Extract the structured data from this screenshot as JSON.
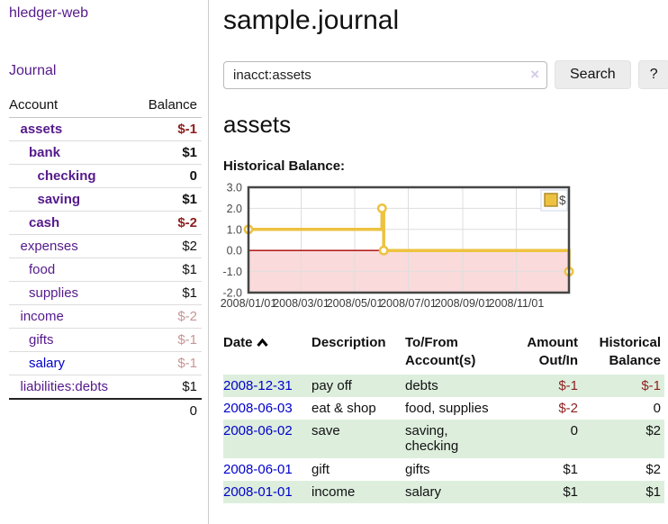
{
  "brand": "hledger-web",
  "nav": {
    "journal": "Journal"
  },
  "header": {
    "title": "sample.journal"
  },
  "search": {
    "value": "inacct:assets",
    "clear_icon": "×",
    "button_label": "Search",
    "help_label": "?"
  },
  "main": {
    "account_heading": "assets",
    "chart_label": "Historical Balance:"
  },
  "sidebar": {
    "header": {
      "account": "Account",
      "balance": "Balance"
    },
    "accounts": [
      {
        "name": "assets",
        "balance": "$-1",
        "indent": 1,
        "bold": true,
        "neg": true
      },
      {
        "name": "bank",
        "balance": "$1",
        "indent": 2,
        "bold": true
      },
      {
        "name": "checking",
        "balance": "0",
        "indent": 3,
        "bold": true
      },
      {
        "name": "saving",
        "balance": "$1",
        "indent": 3,
        "bold": true
      },
      {
        "name": "cash",
        "balance": "$-2",
        "indent": 2,
        "bold": true,
        "neg": true
      },
      {
        "name": "expenses",
        "balance": "$2",
        "indent": 1
      },
      {
        "name": "food",
        "balance": "$1",
        "indent": 2
      },
      {
        "name": "supplies",
        "balance": "$1",
        "indent": 2
      },
      {
        "name": "income",
        "balance": "$-2",
        "indent": 1,
        "dim_neg": true
      },
      {
        "name": "gifts",
        "balance": "$-1",
        "indent": 2,
        "dim_neg": true
      },
      {
        "name": "salary",
        "balance": "$-1",
        "indent": 2,
        "dim_neg": true,
        "blue": true
      },
      {
        "name": "liabilities:debts",
        "balance": "$1",
        "indent": 1
      }
    ],
    "total": "0"
  },
  "chart_data": {
    "type": "line",
    "title": "Historical Balance:",
    "step": true,
    "series": [
      {
        "name": "$",
        "color": "#edc240",
        "points": [
          [
            "2008-01-01",
            1
          ],
          [
            "2008-06-01",
            2
          ],
          [
            "2008-06-03",
            0
          ],
          [
            "2008-12-31",
            -1
          ]
        ]
      }
    ],
    "x_range": [
      "2008-01-01",
      "2008-12-31"
    ],
    "ylim": [
      -2,
      3
    ],
    "y_ticks": [
      3,
      2,
      1,
      0,
      -1,
      -2
    ],
    "y_tick_labels": [
      "3.0",
      "2.0",
      "1.0",
      "0.0",
      "-1.0",
      "-2.0"
    ],
    "x_ticks": [
      "2008-01-01",
      "2008-03-01",
      "2008-05-01",
      "2008-07-01",
      "2008-09-01",
      "2008-11-01"
    ],
    "x_tick_labels": [
      "2008/01/01",
      "2008/03/01",
      "2008/05/01",
      "2008/07/01",
      "2008/09/01",
      "2008/11/01"
    ],
    "legend": {
      "label": "$",
      "position": "top-right"
    },
    "grid": true,
    "negative_region_color": "#fadada",
    "zero_line_color": "#aa0000"
  },
  "register": {
    "columns": {
      "date": "Date",
      "description": "Description",
      "accounts_line1": "To/From",
      "accounts_line2": "Account(s)",
      "amount_line1": "Amount",
      "amount_line2": "Out/In",
      "balance_line1": "Historical",
      "balance_line2": "Balance"
    },
    "rows": [
      {
        "date": "2008-12-31",
        "description": "pay off",
        "accounts": "debts",
        "amount": "$-1",
        "balance": "$-1",
        "amount_neg": true,
        "balance_neg": true,
        "shaded": true
      },
      {
        "date": "2008-06-03",
        "description": "eat & shop",
        "accounts": "food, supplies",
        "amount": "$-2",
        "balance": "0",
        "amount_neg": true,
        "balance_neg": false,
        "shaded": false
      },
      {
        "date": "2008-06-02",
        "description": "save",
        "accounts": "saving, checking",
        "amount": "0",
        "balance": "$2",
        "amount_neg": false,
        "balance_neg": false,
        "shaded": true
      },
      {
        "date": "2008-06-01",
        "description": "gift",
        "accounts": "gifts",
        "amount": "$1",
        "balance": "$2",
        "amount_neg": false,
        "balance_neg": false,
        "shaded": false
      },
      {
        "date": "2008-01-01",
        "description": "income",
        "accounts": "salary",
        "amount": "$1",
        "balance": "$1",
        "amount_neg": false,
        "balance_neg": false,
        "shaded": true
      }
    ]
  },
  "colors": {
    "link_purple": "#551a8b",
    "link_blue": "#0000cc",
    "negative": "#8e1f1f",
    "negative_dim": "#c89595",
    "row_shade": "#ddeedd",
    "series_gold": "#edc240"
  }
}
